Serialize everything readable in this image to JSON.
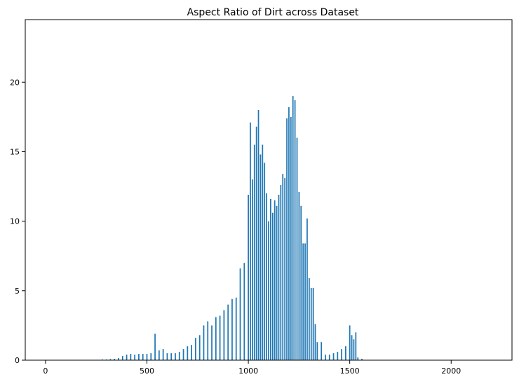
{
  "chart_data": {
    "type": "bar",
    "title": "Aspect Ratio of Dirt across Dataset",
    "xlabel": "",
    "ylabel": "",
    "xlim": [
      -100,
      2300
    ],
    "ylim": [
      0,
      24.5
    ],
    "xticks": [
      0,
      500,
      1000,
      1500,
      2000
    ],
    "xtick_labels": [
      "0",
      "500",
      "1000",
      "1500",
      "2000"
    ],
    "yticks": [
      0,
      5,
      10,
      15,
      20
    ],
    "ytick_labels": [
      "0",
      "5",
      "10",
      "15",
      "20"
    ],
    "grid": false,
    "legend": "none",
    "bar_color": "#1f77b4",
    "bar_width": 6,
    "series": [
      {
        "x": [
          280,
          300,
          320,
          340,
          360,
          380,
          400,
          420,
          440,
          460,
          480,
          500,
          520,
          540,
          560,
          580,
          600,
          620,
          640,
          660,
          680,
          700,
          720,
          740,
          760,
          780,
          800,
          820,
          840,
          860,
          880,
          900,
          920,
          940,
          960,
          980,
          1000,
          1010,
          1020,
          1030,
          1040,
          1050,
          1060,
          1070,
          1080,
          1090,
          1100,
          1110,
          1120,
          1130,
          1140,
          1150,
          1160,
          1170,
          1180,
          1190,
          1200,
          1210,
          1220,
          1230,
          1240,
          1250,
          1260,
          1270,
          1280,
          1290,
          1300,
          1310,
          1320,
          1330,
          1340,
          1360,
          1380,
          1400,
          1420,
          1440,
          1460,
          1480,
          1500,
          1510,
          1520,
          1530,
          1540,
          1560
        ],
        "values": [
          0.05,
          0.05,
          0.08,
          0.1,
          0.15,
          0.3,
          0.4,
          0.45,
          0.4,
          0.45,
          0.45,
          0.45,
          0.5,
          1.9,
          0.7,
          0.8,
          0.5,
          0.5,
          0.5,
          0.6,
          0.8,
          1.0,
          1.1,
          1.6,
          1.8,
          2.5,
          2.8,
          2.5,
          3.1,
          3.2,
          3.6,
          4.0,
          4.4,
          4.5,
          6.6,
          7.0,
          11.9,
          17.1,
          13.0,
          15.5,
          16.8,
          18.0,
          14.8,
          15.5,
          14.2,
          12.0,
          10.0,
          11.6,
          10.6,
          11.5,
          11.1,
          11.9,
          12.6,
          13.4,
          13.1,
          17.4,
          18.2,
          17.5,
          19.0,
          18.7,
          16.0,
          12.1,
          11.1,
          8.4,
          8.4,
          10.2,
          5.9,
          5.2,
          5.2,
          2.6,
          1.3,
          1.3,
          0.4,
          0.4,
          0.5,
          0.6,
          0.8,
          1.0,
          2.5,
          1.8,
          1.5,
          2.0,
          0.2,
          0.1
        ]
      }
    ]
  }
}
